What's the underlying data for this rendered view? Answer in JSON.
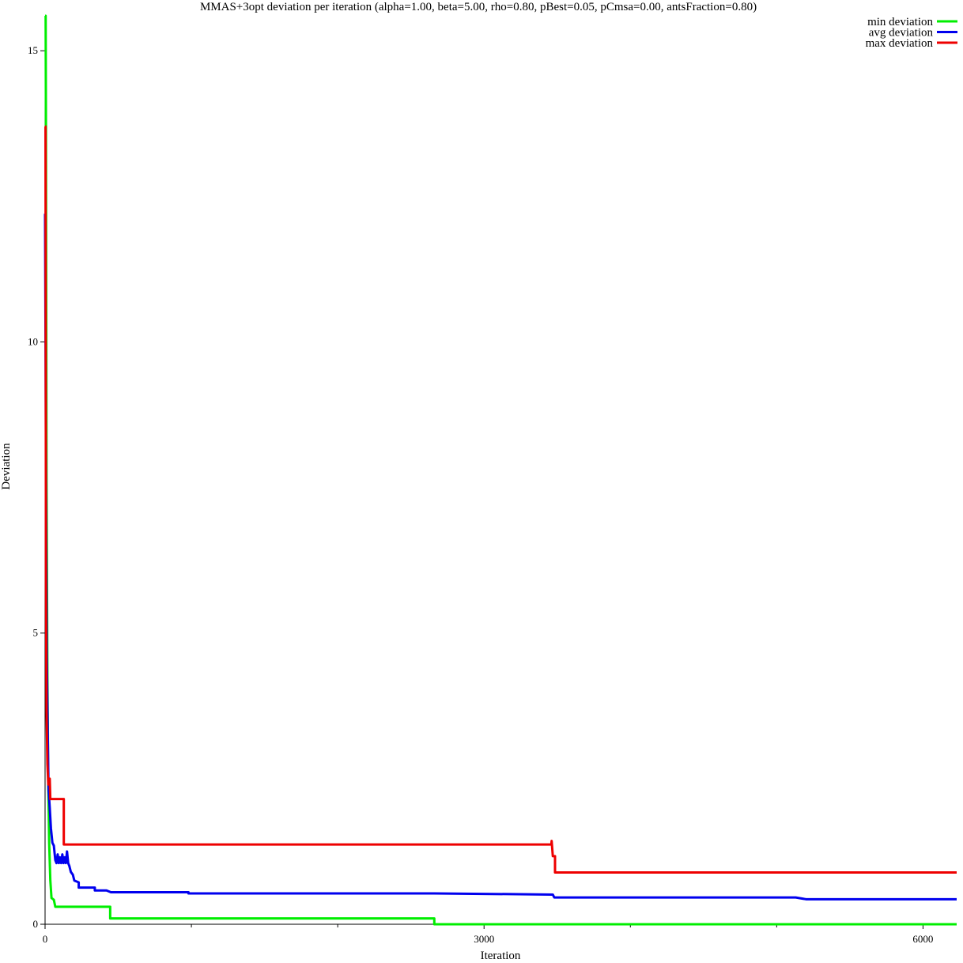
{
  "chart_data": {
    "type": "line",
    "title": "MMAS+3opt deviation per iteration (alpha=1.00, beta=5.00, rho=0.80, pBest=0.05, pCmsa=0.00, antsFraction=0.80)",
    "xlabel": "Iteration",
    "ylabel": "Deviation",
    "xlim": [
      0,
      6230
    ],
    "ylim": [
      0,
      15.6
    ],
    "x_ticks": [
      0,
      3000,
      6000
    ],
    "x_tick_labels": [
      "0",
      "3000",
      "6000"
    ],
    "x_minor_ticks": [
      1000,
      2000,
      4000,
      5000
    ],
    "y_ticks": [
      0,
      5,
      10,
      15
    ],
    "y_tick_labels": [
      "0",
      "5",
      "10",
      "15"
    ],
    "grid": false,
    "legend_position": "top-right",
    "series": [
      {
        "name": "min deviation",
        "color": "#00ee00",
        "points": [
          [
            0,
            15.6
          ],
          [
            4,
            15.6
          ],
          [
            6,
            13.7
          ],
          [
            10,
            7.6
          ],
          [
            16,
            4.2
          ],
          [
            22,
            2.4
          ],
          [
            28,
            1.4
          ],
          [
            36,
            0.75
          ],
          [
            44,
            0.45
          ],
          [
            60,
            0.42
          ],
          [
            70,
            0.3
          ],
          [
            445,
            0.3
          ],
          [
            445,
            0.1
          ],
          [
            2660,
            0.1
          ],
          [
            2660,
            0.0
          ],
          [
            6230,
            0.0
          ]
        ]
      },
      {
        "name": "avg deviation",
        "color": "#0000ee",
        "points": [
          [
            0,
            12.2
          ],
          [
            4,
            9.5
          ],
          [
            8,
            6.5
          ],
          [
            12,
            4.6
          ],
          [
            18,
            3.3
          ],
          [
            24,
            2.3
          ],
          [
            32,
            2.0
          ],
          [
            40,
            1.65
          ],
          [
            50,
            1.4
          ],
          [
            60,
            1.35
          ],
          [
            70,
            1.1
          ],
          [
            78,
            1.05
          ],
          [
            86,
            1.2
          ],
          [
            94,
            1.05
          ],
          [
            102,
            1.15
          ],
          [
            110,
            1.05
          ],
          [
            118,
            1.2
          ],
          [
            126,
            1.05
          ],
          [
            134,
            1.15
          ],
          [
            142,
            1.05
          ],
          [
            150,
            1.25
          ],
          [
            158,
            1.05
          ],
          [
            166,
            1.0
          ],
          [
            176,
            0.9
          ],
          [
            190,
            0.85
          ],
          [
            200,
            0.75
          ],
          [
            230,
            0.72
          ],
          [
            230,
            0.63
          ],
          [
            340,
            0.63
          ],
          [
            340,
            0.58
          ],
          [
            420,
            0.58
          ],
          [
            450,
            0.55
          ],
          [
            980,
            0.55
          ],
          [
            980,
            0.53
          ],
          [
            2660,
            0.53
          ],
          [
            3470,
            0.51
          ],
          [
            3480,
            0.46
          ],
          [
            5130,
            0.46
          ],
          [
            5200,
            0.43
          ],
          [
            6230,
            0.43
          ]
        ]
      },
      {
        "name": "max deviation",
        "color": "#ee0000",
        "points": [
          [
            0,
            13.7
          ],
          [
            3,
            13.7
          ],
          [
            6,
            5.9
          ],
          [
            10,
            3.7
          ],
          [
            16,
            2.75
          ],
          [
            22,
            2.4
          ],
          [
            32,
            2.5
          ],
          [
            36,
            2.15
          ],
          [
            128,
            2.15
          ],
          [
            128,
            1.37
          ],
          [
            3460,
            1.37
          ],
          [
            3462,
            1.43
          ],
          [
            3470,
            1.17
          ],
          [
            3485,
            1.17
          ],
          [
            3485,
            0.89
          ],
          [
            6230,
            0.89
          ]
        ]
      }
    ]
  }
}
